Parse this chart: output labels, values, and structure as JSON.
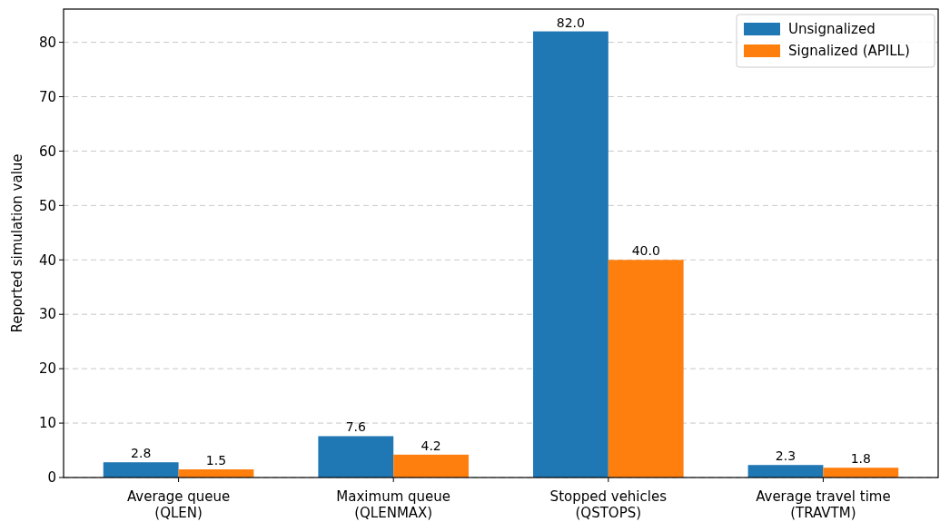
{
  "chart_data": {
    "type": "bar",
    "ylabel": "Reported simulation value",
    "categories": [
      "Average queue\n(QLEN)",
      "Maximum queue\n(QLENMAX)",
      "Stopped vehicles\n(QSTOPS)",
      "Average travel time\n(TRAVTM)"
    ],
    "series": [
      {
        "name": "Unsignalized",
        "color": "#1f77b4",
        "values": [
          2.8,
          7.6,
          82,
          2.3
        ],
        "value_labels": [
          "2.8",
          "7.6",
          "82.0",
          "2.3"
        ]
      },
      {
        "name": "Signalized (APILL)",
        "color": "#ff7f0e",
        "values": [
          1.5,
          4.2,
          40,
          1.8
        ],
        "value_labels": [
          "1.5",
          "4.2",
          "40.0",
          "1.8"
        ]
      }
    ],
    "ylim": [
      0,
      86.1
    ],
    "yticks": [
      0,
      10,
      20,
      30,
      40,
      50,
      60,
      70,
      80
    ],
    "grid": "y",
    "legend": "top right"
  }
}
